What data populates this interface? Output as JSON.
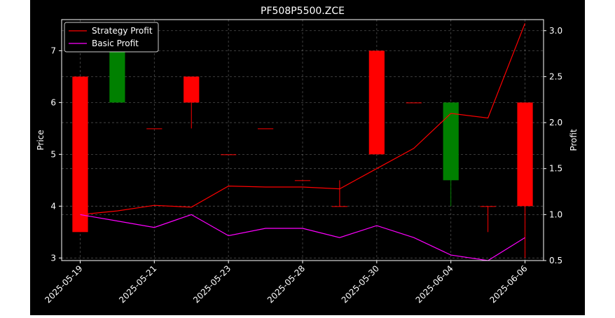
{
  "chart_data": {
    "type": "candlestick+line",
    "title": "PF508P5500.ZCE",
    "xlabel": "",
    "ylabel_left": "Price",
    "ylabel_right": "Profit",
    "ylim_left": [
      2.95,
      7.6
    ],
    "ylim_right": [
      0.5,
      3.12
    ],
    "yticks_left": [
      "3",
      "4",
      "5",
      "6",
      "7"
    ],
    "yticks_right": [
      "0.5",
      "1.0",
      "1.5",
      "2.0",
      "2.5",
      "3.0"
    ],
    "grid": true,
    "legend_position": "upper-left",
    "x_tick_labels": [
      "2025-05-19",
      "2025-05-21",
      "2025-05-23",
      "2025-05-28",
      "2025-05-30",
      "2025-06-04",
      "2025-06-06"
    ],
    "x_tick_index": [
      0,
      2,
      4,
      6,
      8,
      10,
      12
    ],
    "candles": [
      {
        "open": 6.5,
        "high": 6.5,
        "low": 3.5,
        "close": 3.5
      },
      {
        "open": 6.0,
        "high": 7.5,
        "low": 6.0,
        "close": 7.5
      },
      {
        "open": 5.5,
        "high": 5.5,
        "low": 5.5,
        "close": 5.5
      },
      {
        "open": 6.5,
        "high": 6.5,
        "low": 5.5,
        "close": 6.0
      },
      {
        "open": 5.0,
        "high": 5.0,
        "low": 5.0,
        "close": 5.0
      },
      {
        "open": 5.5,
        "high": 5.5,
        "low": 5.5,
        "close": 5.5
      },
      {
        "open": 4.5,
        "high": 4.5,
        "low": 4.5,
        "close": 4.5
      },
      {
        "open": 4.0,
        "high": 4.5,
        "low": 4.0,
        "close": 4.0
      },
      {
        "open": 7.0,
        "high": 7.0,
        "low": 5.0,
        "close": 5.0
      },
      {
        "open": 6.0,
        "high": 6.0,
        "low": 6.0,
        "close": 6.0
      },
      {
        "open": 4.5,
        "high": 6.0,
        "low": 4.0,
        "close": 6.0
      },
      {
        "open": 4.0,
        "high": 4.0,
        "low": 3.5,
        "close": 4.0
      },
      {
        "open": 6.0,
        "high": 6.0,
        "low": 3.0,
        "close": 4.0
      }
    ],
    "series": [
      {
        "name": "Strategy Profit",
        "color": "#ff0000",
        "values": [
          1.0,
          1.04,
          1.1,
          1.08,
          1.31,
          1.3,
          1.3,
          1.28,
          1.5,
          1.72,
          2.1,
          2.05,
          3.08
        ]
      },
      {
        "name": "Basic Profit",
        "color": "#ff00ff",
        "values": [
          1.0,
          0.93,
          0.86,
          1.0,
          0.77,
          0.85,
          0.85,
          0.75,
          0.88,
          0.75,
          0.56,
          0.5,
          0.75
        ]
      }
    ],
    "colors": {
      "up": "#008000",
      "down": "#ff0000",
      "figure_bg": "#000000",
      "page_bg": "#ffffff",
      "text": "#ffffff"
    }
  }
}
